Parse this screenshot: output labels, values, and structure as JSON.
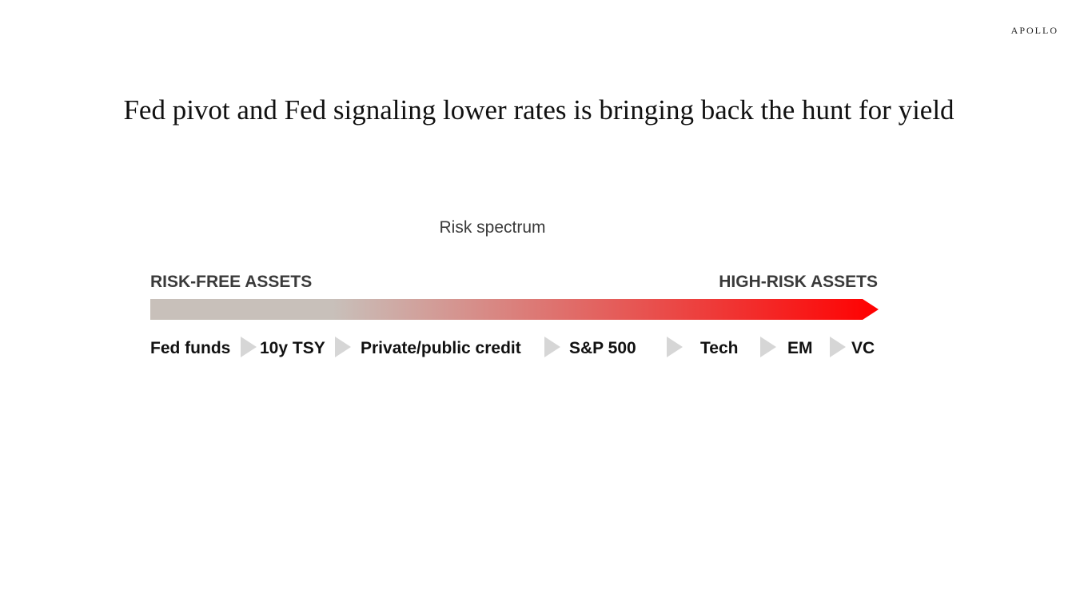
{
  "brand": "APOLLO",
  "title": "Fed pivot and Fed signaling lower rates is bringing back the hunt for yield",
  "diagram": {
    "subtitle": "Risk spectrum",
    "left_label": "RISK-FREE ASSETS",
    "right_label": "HIGH-RISK ASSETS",
    "colors": {
      "gradient_start": "#c8c0ba",
      "gradient_mid": "#d99a98",
      "gradient_end": "#ff0000",
      "separator": "#d6d6d6"
    },
    "assets": [
      "Fed funds",
      "10y TSY",
      "Private/public credit",
      "S&P 500",
      "Tech",
      "EM",
      "VC"
    ]
  }
}
